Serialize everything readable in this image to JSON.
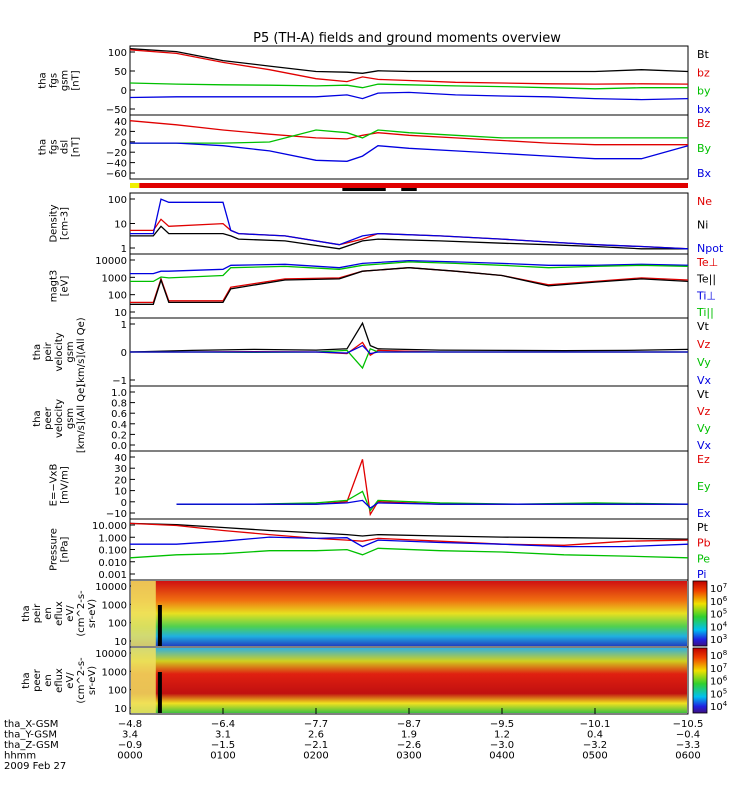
{
  "title": "P5 (TH-A) fields and ground moments overview",
  "colors": {
    "black": "#000000",
    "red": "#e00000",
    "green": "#00c000",
    "blue": "#0000e0",
    "yellow": "#f0f000"
  },
  "chart_data": [
    {
      "type": "line",
      "panel": "fgs_gsm",
      "ylabel": [
        "tha",
        "fgs",
        "gsm",
        "[nT]"
      ],
      "ylim": [
        -75,
        105
      ],
      "yticks": [
        "100",
        "50",
        "0",
        "−50"
      ],
      "legend": [
        {
          "label": "Bt",
          "color": "#000000"
        },
        {
          "label": "bz",
          "color": "#e00000"
        },
        {
          "label": "by",
          "color": "#00c000"
        },
        {
          "label": "bx",
          "color": "#0000e0"
        }
      ],
      "x": [
        0,
        30,
        60,
        90,
        120,
        140,
        150,
        160,
        180,
        210,
        240,
        270,
        300,
        330,
        360
      ],
      "series": [
        {
          "name": "Bt",
          "color": "#000000",
          "values": [
            103,
            95,
            70,
            55,
            40,
            38,
            35,
            42,
            40,
            40,
            40,
            40,
            40,
            45,
            40
          ]
        },
        {
          "name": "bz",
          "color": "#e00000",
          "values": [
            100,
            90,
            65,
            45,
            20,
            12,
            25,
            18,
            15,
            10,
            8,
            6,
            5,
            6,
            5
          ]
        },
        {
          "name": "by",
          "color": "#00c000",
          "values": [
            8,
            5,
            3,
            2,
            0,
            2,
            -5,
            5,
            3,
            0,
            -2,
            -5,
            -8,
            -5,
            -5
          ]
        },
        {
          "name": "bx",
          "color": "#0000e0",
          "values": [
            -32,
            -30,
            -30,
            -30,
            -30,
            -25,
            -35,
            -20,
            -18,
            -25,
            -28,
            -30,
            -35,
            -38,
            -35
          ]
        }
      ]
    },
    {
      "type": "line",
      "panel": "fgs_dsl",
      "ylabel": [
        "tha",
        "fgs",
        "dsl",
        "[nT]"
      ],
      "ylim": [
        -70,
        45
      ],
      "yticks": [
        "40",
        "20",
        "0",
        "−20",
        "−40",
        "−60"
      ],
      "legend": [
        {
          "label": "Bz",
          "color": "#e00000"
        },
        {
          "label": "By",
          "color": "#00c000"
        },
        {
          "label": "Bx",
          "color": "#0000e0"
        }
      ],
      "x": [
        0,
        30,
        60,
        90,
        120,
        140,
        150,
        160,
        180,
        210,
        240,
        270,
        300,
        330,
        360
      ],
      "series": [
        {
          "name": "Bz",
          "color": "#e00000",
          "values": [
            38,
            30,
            20,
            12,
            5,
            3,
            10,
            15,
            10,
            5,
            0,
            -5,
            -8,
            -8,
            -8
          ]
        },
        {
          "name": "By",
          "color": "#00c000",
          "values": [
            -5,
            -5,
            -5,
            -3,
            20,
            15,
            5,
            20,
            15,
            10,
            5,
            5,
            5,
            5,
            5
          ]
        },
        {
          "name": "Bx",
          "color": "#0000e0",
          "values": [
            -5,
            -5,
            -10,
            -20,
            -38,
            -40,
            -30,
            -10,
            -15,
            -20,
            -25,
            -30,
            -35,
            -35,
            -10
          ]
        }
      ]
    },
    {
      "type": "line",
      "panel": "density",
      "ylabel": [
        "Density",
        "[cm-3]"
      ],
      "yscale": "log",
      "ylim": [
        0.2,
        250
      ],
      "yticks": [
        "100",
        "10",
        "1"
      ],
      "legend": [
        {
          "label": "Ne",
          "color": "#e00000"
        },
        {
          "label": "Ni",
          "color": "#000000"
        },
        {
          "label": "Npot",
          "color": "#0000e0"
        }
      ],
      "x": [
        0,
        15,
        20,
        25,
        60,
        65,
        70,
        100,
        135,
        150,
        160,
        200,
        240,
        270,
        300,
        330,
        360
      ],
      "series": [
        {
          "name": "Ne",
          "color": "#e00000",
          "values": [
            3,
            3,
            12,
            5,
            7,
            3,
            2,
            1.5,
            0.5,
            1,
            2,
            1.5,
            1,
            0.7,
            0.5,
            0.4,
            0.3
          ]
        },
        {
          "name": "Ni",
          "color": "#000000",
          "values": [
            1.5,
            1.5,
            5,
            2,
            2,
            1.5,
            1,
            0.8,
            0.3,
            0.8,
            1,
            0.8,
            0.6,
            0.5,
            0.4,
            0.3,
            0.3
          ]
        },
        {
          "name": "Npot",
          "color": "#0000e0",
          "values": [
            2,
            2,
            150,
            100,
            100,
            3,
            2,
            1.5,
            0.5,
            1.5,
            2,
            1.5,
            1,
            0.7,
            0.5,
            0.4,
            0.3
          ]
        }
      ]
    },
    {
      "type": "line",
      "panel": "magt3",
      "ylabel": [
        "magt3",
        "[eV]"
      ],
      "yscale": "log",
      "ylim": [
        10,
        12000
      ],
      "yticks": [
        "10000",
        "1000",
        "100",
        "10"
      ],
      "legend": [
        {
          "label": "Te⊥",
          "color": "#e00000"
        },
        {
          "label": "Te||",
          "color": "#000000"
        },
        {
          "label": "Ti⊥",
          "color": "#0000e0"
        },
        {
          "label": "Ti||",
          "color": "#00c000"
        }
      ],
      "x": [
        0,
        15,
        20,
        25,
        60,
        65,
        100,
        135,
        150,
        180,
        210,
        240,
        270,
        300,
        330,
        360
      ],
      "series": [
        {
          "name": "Te_perp",
          "color": "#e00000",
          "values": [
            50,
            50,
            800,
            60,
            60,
            300,
            800,
            900,
            2000,
            3000,
            2000,
            1200,
            400,
            600,
            900,
            700
          ]
        },
        {
          "name": "Te_par",
          "color": "#000000",
          "values": [
            40,
            40,
            700,
            50,
            50,
            250,
            700,
            800,
            2000,
            3000,
            2000,
            1200,
            350,
            550,
            800,
            600
          ]
        },
        {
          "name": "Ti_perp",
          "color": "#0000e0",
          "values": [
            1500,
            1500,
            2000,
            2000,
            2500,
            4000,
            4500,
            3000,
            5000,
            7000,
            6000,
            5000,
            4000,
            4000,
            4500,
            4000
          ]
        },
        {
          "name": "Ti_par",
          "color": "#00c000",
          "values": [
            600,
            600,
            1000,
            900,
            1200,
            3000,
            3500,
            2500,
            4000,
            6000,
            5000,
            4000,
            3000,
            3500,
            4000,
            3500
          ]
        }
      ]
    },
    {
      "type": "line",
      "panel": "peir_velocity",
      "ylabel": [
        "tha",
        "peir",
        "velocity",
        "gsm",
        "[km/s](All Qe)"
      ],
      "ylim": [
        -1000,
        1000
      ],
      "yticks": [
        "1",
        "0",
        "−1"
      ],
      "legend": [
        {
          "label": "Vt",
          "color": "#000000"
        },
        {
          "label": "Vz",
          "color": "#e00000"
        },
        {
          "label": "Vy",
          "color": "#00c000"
        },
        {
          "label": "Vx",
          "color": "#0000e0"
        }
      ],
      "x": [
        0,
        40,
        80,
        120,
        140,
        150,
        155,
        160,
        200,
        240,
        280,
        320,
        360
      ],
      "series": [
        {
          "name": "Vt",
          "color": "#000000",
          "values": [
            0,
            50,
            80,
            60,
            100,
            900,
            200,
            100,
            60,
            50,
            40,
            50,
            80
          ]
        },
        {
          "name": "Vz",
          "color": "#e00000",
          "values": [
            0,
            0,
            10,
            0,
            -50,
            300,
            -100,
            50,
            0,
            0,
            0,
            0,
            0
          ]
        },
        {
          "name": "Vy",
          "color": "#00c000",
          "values": [
            0,
            0,
            -10,
            0,
            50,
            -500,
            100,
            0,
            0,
            0,
            0,
            0,
            0
          ]
        },
        {
          "name": "Vx",
          "color": "#0000e0",
          "values": [
            0,
            0,
            0,
            0,
            -30,
            200,
            -50,
            0,
            0,
            0,
            0,
            0,
            0
          ]
        }
      ]
    },
    {
      "type": "line",
      "panel": "peer_velocity",
      "ylabel": [
        "tha",
        "peer",
        "velocity",
        "gsm",
        "[km/s](All Qe)"
      ],
      "ylim": [
        0,
        1
      ],
      "yticks": [
        "1.0",
        "0.8",
        "0.6",
        "0.4",
        "0.2",
        "0.0"
      ],
      "legend": [
        {
          "label": "Vt",
          "color": "#000000"
        },
        {
          "label": "Vz",
          "color": "#e00000"
        },
        {
          "label": "Vy",
          "color": "#00c000"
        },
        {
          "label": "Vx",
          "color": "#0000e0"
        }
      ],
      "series": []
    },
    {
      "type": "line",
      "panel": "efield",
      "ylabel": [
        "E=−VxB",
        "[mV/m]"
      ],
      "ylim": [
        -10,
        40
      ],
      "yticks": [
        "40",
        "30",
        "20",
        "10",
        "0",
        "−10"
      ],
      "legend": [
        {
          "label": "Ez",
          "color": "#e00000"
        },
        {
          "label": "Ey",
          "color": "#00c000"
        },
        {
          "label": "Ex",
          "color": "#0000e0"
        }
      ],
      "x": [
        30,
        80,
        120,
        140,
        150,
        155,
        160,
        200,
        250,
        300,
        360
      ],
      "series": [
        {
          "name": "Ez",
          "color": "#e00000",
          "values": [
            0,
            0,
            0,
            2,
            35,
            -8,
            2,
            0,
            0,
            0,
            0
          ]
        },
        {
          "name": "Ey",
          "color": "#00c000",
          "values": [
            0,
            0,
            1,
            3,
            10,
            -5,
            3,
            1,
            0,
            1,
            0
          ]
        },
        {
          "name": "Ex",
          "color": "#0000e0",
          "values": [
            0,
            0,
            0,
            1,
            3,
            -3,
            1,
            0,
            0,
            0,
            0
          ]
        }
      ]
    },
    {
      "type": "line",
      "panel": "pressure",
      "ylabel": [
        "Pressure",
        "[nPa]"
      ],
      "yscale": "log",
      "ylim": [
        0.001,
        15
      ],
      "yticks": [
        "10.000",
        "1.000",
        "0.100",
        "0.010",
        "0.001"
      ],
      "legend": [
        {
          "label": "Pt",
          "color": "#000000"
        },
        {
          "label": "Pb",
          "color": "#e00000"
        },
        {
          "label": "Pe",
          "color": "#00c000"
        },
        {
          "label": "Pi",
          "color": "#0000e0"
        }
      ],
      "x": [
        0,
        30,
        60,
        90,
        120,
        140,
        150,
        160,
        200,
        240,
        280,
        320,
        360
      ],
      "series": [
        {
          "name": "Pt",
          "color": "#000000",
          "values": [
            10,
            8,
            5,
            3,
            2,
            1.5,
            1.2,
            1.5,
            1.2,
            1,
            0.9,
            0.8,
            0.7
          ]
        },
        {
          "name": "Pb",
          "color": "#e00000",
          "values": [
            10,
            7,
            3,
            1.5,
            0.8,
            0.6,
            0.5,
            0.8,
            0.5,
            0.3,
            0.25,
            0.5,
            0.6
          ]
        },
        {
          "name": "Pe",
          "color": "#00c000",
          "values": [
            0.03,
            0.05,
            0.06,
            0.1,
            0.1,
            0.12,
            0.05,
            0.15,
            0.1,
            0.08,
            0.05,
            0.04,
            0.03
          ]
        },
        {
          "name": "Pi",
          "color": "#0000e0",
          "values": [
            0.3,
            0.3,
            0.5,
            1,
            0.8,
            0.9,
            0.2,
            0.6,
            0.4,
            0.3,
            0.2,
            0.2,
            0.3
          ]
        }
      ]
    },
    {
      "type": "heatmap",
      "panel": "peir_en_eflux",
      "ylabel": [
        "tha",
        "peir",
        "en",
        "eflux",
        "eV/",
        "(cm^2-s-",
        "sr-eV)"
      ],
      "yscale": "log",
      "ylim": [
        5,
        20000
      ],
      "yticks": [
        "10000",
        "1000",
        "100",
        "10"
      ],
      "colorbar_ticks": [
        "10^7",
        "10^6",
        "10^5",
        "10^4",
        "10^3"
      ]
    },
    {
      "type": "heatmap",
      "panel": "peer_en_eflux",
      "ylabel": [
        "tha",
        "peer",
        "en",
        "eflux",
        "eV/",
        "(cm^2-s-",
        "sr-eV)"
      ],
      "yscale": "log",
      "ylim": [
        5,
        20000
      ],
      "yticks": [
        "10000",
        "1000",
        "100",
        "10"
      ],
      "colorbar_ticks": [
        "10^8",
        "10^7",
        "10^6",
        "10^5",
        "10^4"
      ]
    }
  ],
  "xaxis": {
    "row_labels": [
      "tha_X-GSM",
      "tha_Y-GSM",
      "tha_Z-GSM",
      "hhmm",
      "2009 Feb 27"
    ],
    "columns": [
      {
        "x": 0,
        "values": [
          "−4.8",
          "3.4",
          "−0.9",
          "0000"
        ]
      },
      {
        "x": 60,
        "values": [
          "−6.4",
          "3.1",
          "−1.5",
          "0100"
        ]
      },
      {
        "x": 120,
        "values": [
          "−7.7",
          "2.6",
          "−2.1",
          "0200"
        ]
      },
      {
        "x": 180,
        "values": [
          "−8.7",
          "1.9",
          "−2.6",
          "0300"
        ]
      },
      {
        "x": 240,
        "values": [
          "−9.5",
          "1.2",
          "−3.0",
          "0400"
        ]
      },
      {
        "x": 300,
        "values": [
          "−10.1",
          "0.4",
          "−3.2",
          "0500"
        ]
      },
      {
        "x": 360,
        "values": [
          "−10.5",
          "−0.4",
          "−3.3",
          "0600"
        ]
      }
    ]
  }
}
